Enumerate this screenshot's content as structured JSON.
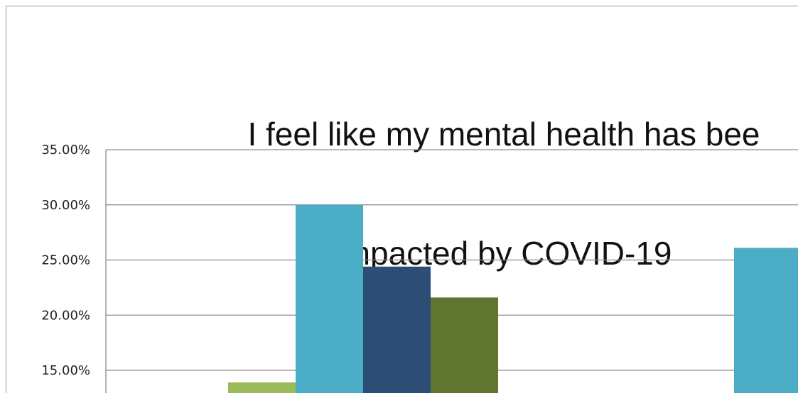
{
  "chart_data": {
    "type": "bar",
    "title_lines": [
      "I feel like my mental health has bee",
      "impacted by COVID-19"
    ],
    "y_tick_labels": [
      "35.00%",
      "30.00%",
      "25.00%",
      "20.00%",
      "15.00%"
    ],
    "y_ticks": [
      35,
      30,
      25,
      20,
      15
    ],
    "ylim": [
      15,
      35
    ],
    "grid": true,
    "categories": [
      "",
      ""
    ],
    "series": [
      {
        "color": "#9bbb59",
        "values": [
          13.9,
          null
        ]
      },
      {
        "color": "#4bacc6",
        "values": [
          30.0,
          26.1
        ]
      },
      {
        "color": "#2c4d75",
        "values": [
          24.4,
          null
        ]
      },
      {
        "color": "#5f7530",
        "values": [
          21.6,
          null
        ]
      }
    ]
  }
}
